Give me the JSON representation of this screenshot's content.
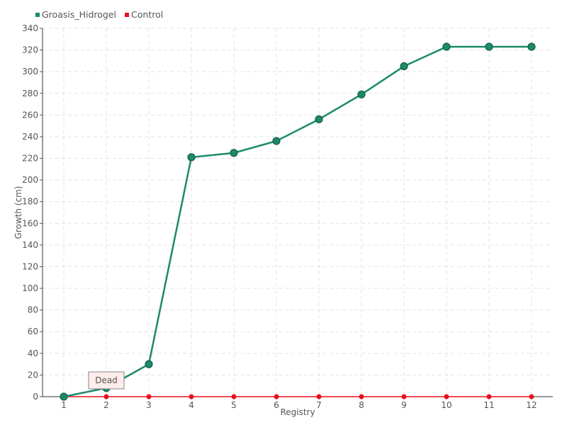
{
  "chart_data": {
    "type": "line",
    "xlabel": "Registry",
    "ylabel": "Growth (cm)",
    "x": [
      1,
      2,
      3,
      4,
      5,
      6,
      7,
      8,
      9,
      10,
      11,
      12
    ],
    "ylim": [
      0,
      340
    ],
    "ytick_step": 20,
    "grid": true,
    "legend_position": "top-left",
    "series": [
      {
        "name": "Groasis_Hidrogel",
        "color": "#1b8a6b",
        "values": [
          0,
          8,
          30,
          221,
          225,
          236,
          256,
          279,
          305,
          323,
          323,
          323
        ]
      },
      {
        "name": "Control",
        "color": "#e8101e",
        "values": [
          0,
          0,
          0,
          0,
          0,
          0,
          0,
          0,
          0,
          0,
          0,
          0
        ]
      }
    ],
    "annotations": [
      {
        "text": "Dead",
        "x": 2,
        "y": 0,
        "series": "Control"
      }
    ]
  }
}
